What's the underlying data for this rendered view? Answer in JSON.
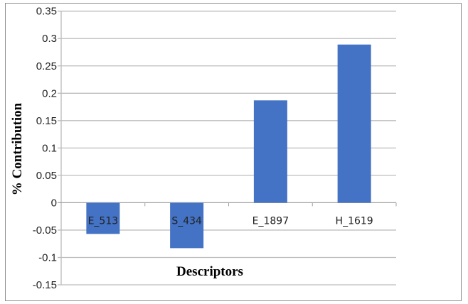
{
  "chart_data": {
    "type": "bar",
    "categories": [
      "E_513",
      "S_434",
      "E_1897",
      "H_1619"
    ],
    "values": [
      -0.057,
      -0.083,
      0.187,
      0.289
    ],
    "title": "",
    "xlabel": "Descriptors",
    "ylabel": "% Contribution",
    "ylim": [
      -0.15,
      0.35
    ],
    "yticks": [
      -0.15,
      -0.1,
      -0.05,
      0,
      0.05,
      0.1,
      0.15,
      0.2,
      0.25,
      0.3,
      0.35
    ],
    "ytick_labels": [
      "-0.15",
      "-0.1",
      "-0.05",
      "0",
      "0.05",
      "0.1",
      "0.15",
      "0.2",
      "0.25",
      "0.3",
      "0.35"
    ],
    "grid": true,
    "legend": "none",
    "bar_color": "#4472c4"
  }
}
